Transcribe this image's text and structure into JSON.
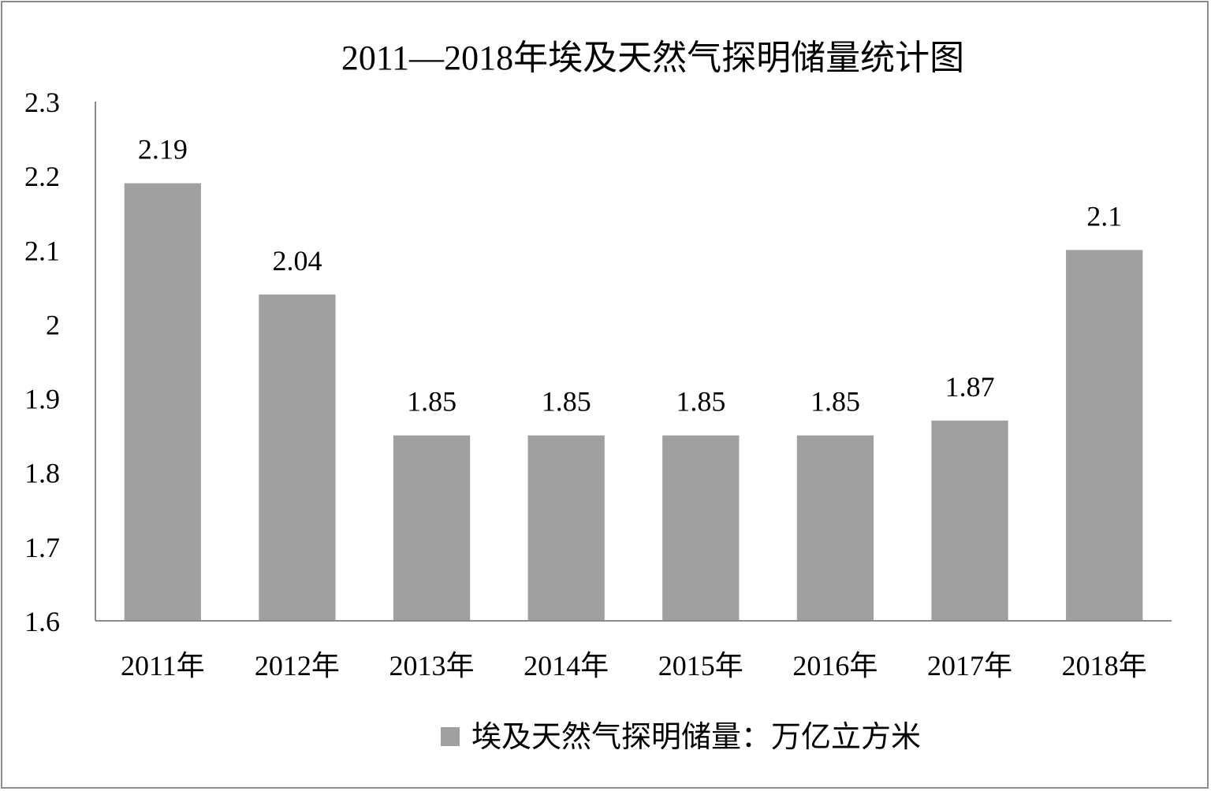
{
  "chart_data": {
    "type": "bar",
    "title": "2011—2018年埃及天然气探明储量统计图",
    "categories": [
      "2011年",
      "2012年",
      "2013年",
      "2014年",
      "2015年",
      "2016年",
      "2017年",
      "2018年"
    ],
    "series": [
      {
        "name": "埃及天然气探明储量：万亿立方米",
        "values": [
          2.19,
          2.04,
          1.85,
          1.85,
          1.85,
          1.85,
          1.87,
          2.1
        ],
        "color": "#a0a0a0"
      }
    ],
    "data_labels": [
      "2.19",
      "2.04",
      "1.85",
      "1.85",
      "1.85",
      "1.85",
      "1.87",
      "2.1"
    ],
    "ylim": [
      1.6,
      2.3
    ],
    "yticks": [
      "1.6",
      "1.7",
      "1.8",
      "1.9",
      "2",
      "2.1",
      "2.2",
      "2.3"
    ],
    "xlabel": "",
    "ylabel": "",
    "grid": false,
    "legend_position": "bottom"
  }
}
